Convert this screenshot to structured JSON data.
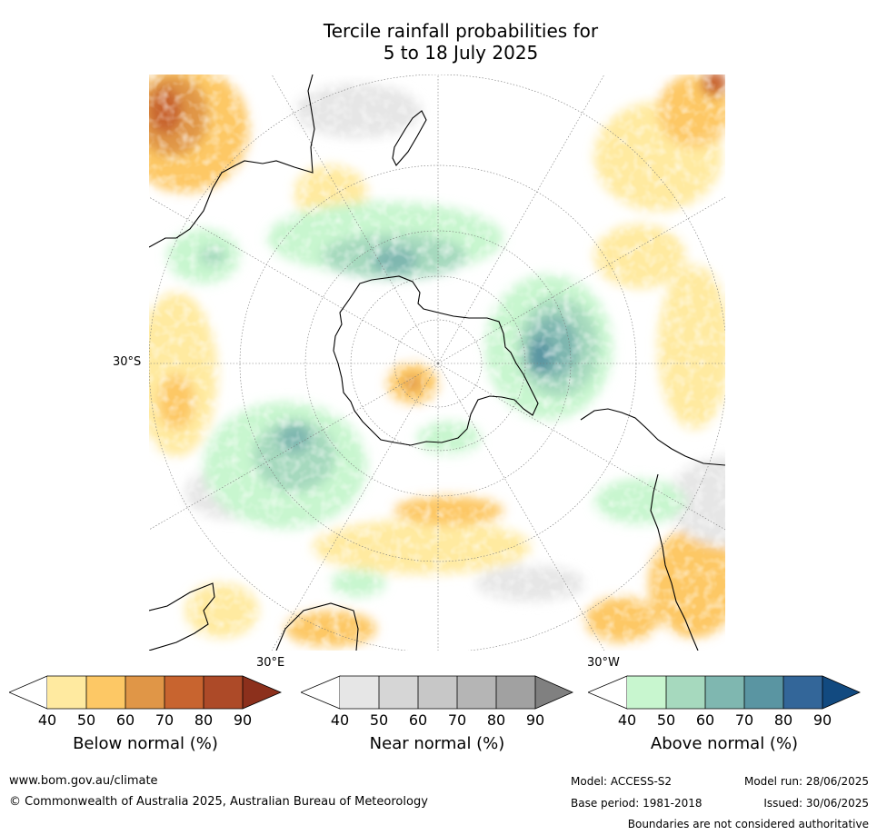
{
  "title_line1": "Tercile rainfall probabilities for",
  "title_line2": "5 to 18 July 2025",
  "map_labels": {
    "lat_label": "30°S",
    "lon_east": "30°E",
    "lon_west": "30°W"
  },
  "colorbars": [
    {
      "name": "below",
      "title": "Below normal (%)",
      "ticks": [
        "40",
        "50",
        "60",
        "70",
        "80",
        "90"
      ],
      "colors": [
        "#ffffff",
        "#ffeaa0",
        "#fdc865",
        "#e09647",
        "#c8642f",
        "#ad4a28",
        "#8c301c"
      ]
    },
    {
      "name": "near",
      "title": "Near normal (%)",
      "ticks": [
        "40",
        "50",
        "60",
        "70",
        "80",
        "90"
      ],
      "colors": [
        "#ffffff",
        "#e6e6e6",
        "#d6d6d6",
        "#c7c7c7",
        "#b5b5b5",
        "#a1a1a1",
        "#808080"
      ]
    },
    {
      "name": "above",
      "title": "Above normal (%)",
      "ticks": [
        "40",
        "50",
        "60",
        "70",
        "80",
        "90"
      ],
      "colors": [
        "#ffffff",
        "#c8f6cf",
        "#a6d9be",
        "#7fb7b0",
        "#5a95a2",
        "#336699",
        "#124a80"
      ]
    }
  ],
  "footer": {
    "website": "www.bom.gov.au/climate",
    "copyright": "© Commonwealth of Australia 2025, Australian Bureau of Meteorology",
    "model": "Model: ACCESS-S2",
    "base_period": "Base period: 1981-2018",
    "model_run": "Model run: 28/06/2025",
    "issued": "Issued: 30/06/2025",
    "disclaimer": "Boundaries are not considered authoritative"
  }
}
